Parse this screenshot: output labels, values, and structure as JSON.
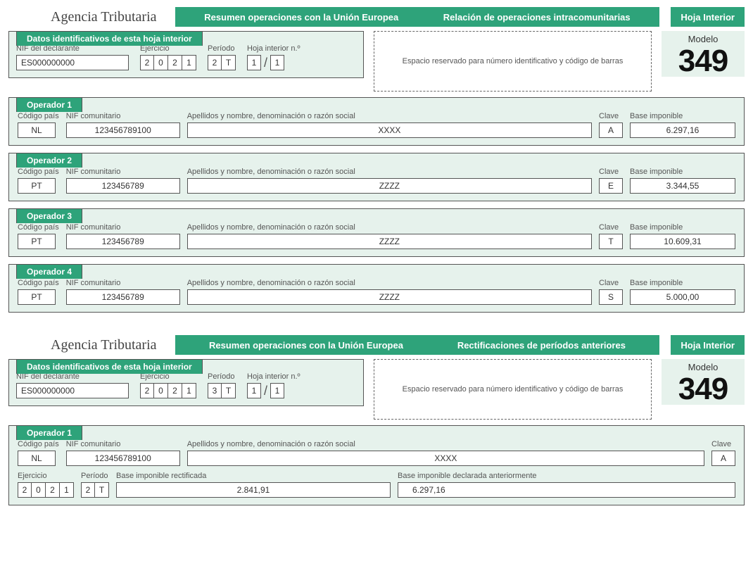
{
  "colors": {
    "green": "#2ea37a",
    "panel_bg": "#e6f2ec",
    "border": "#555555",
    "text": "#333333"
  },
  "common": {
    "agencia": "Agencia Tributaria",
    "hoja_interior": "Hoja Interior",
    "modelo_label": "Modelo",
    "modelo_num": "349",
    "barcode_text": "Espacio reservado para número identificativo y código de barras",
    "labels": {
      "id_title": "Datos identificativos de esta hoja interior",
      "nif_decl": "NIF del declarante",
      "ejercicio": "Ejercicio",
      "periodo": "Período",
      "hoja_no": "Hoja interior n.º",
      "codigo_pais": "Código país",
      "nif_com": "NIF comunitario",
      "nombre": "Apellidos y nombre, denominación o razón social",
      "clave": "Clave",
      "base": "Base imponible",
      "base_rect": "Base imponible rectificada",
      "base_prev": "Base imponible declarada anteriormente"
    }
  },
  "page1": {
    "header_left": "Resumen operaciones con la Unión Europea",
    "header_right": "Relación de operaciones intracomunitarias",
    "id": {
      "nif": "ES000000000",
      "ejercicio": [
        "2",
        "0",
        "2",
        "1"
      ],
      "periodo": [
        "2",
        "T"
      ],
      "hoja_a": "1",
      "hoja_b": "1"
    },
    "operators": [
      {
        "title": "Operador 1",
        "pais": "NL",
        "nif": "123456789100",
        "nombre": "XXXX",
        "clave": "A",
        "base": "6.297,16"
      },
      {
        "title": "Operador 2",
        "pais": "PT",
        "nif": "123456789",
        "nombre": "ZZZZ",
        "clave": "E",
        "base": "3.344,55"
      },
      {
        "title": "Operador 3",
        "pais": "PT",
        "nif": "123456789",
        "nombre": "ZZZZ",
        "clave": "T",
        "base": "10.609,31"
      },
      {
        "title": "Operador 4",
        "pais": "PT",
        "nif": "123456789",
        "nombre": "ZZZZ",
        "clave": "S",
        "base": "5.000,00"
      }
    ]
  },
  "page2": {
    "header_left": "Resumen operaciones con la Unión Europea",
    "header_right": "Rectificaciones de períodos anteriores",
    "id": {
      "nif": "ES000000000",
      "ejercicio": [
        "2",
        "0",
        "2",
        "1"
      ],
      "periodo": [
        "3",
        "T"
      ],
      "hoja_a": "1",
      "hoja_b": "1"
    },
    "rect": {
      "title": "Operador 1",
      "pais": "NL",
      "nif": "123456789100",
      "nombre": "XXXX",
      "clave": "A",
      "ejercicio": [
        "2",
        "0",
        "2",
        "1"
      ],
      "periodo": [
        "2",
        "T"
      ],
      "base_rect": "2.841,91",
      "base_prev": "6.297,16"
    }
  }
}
